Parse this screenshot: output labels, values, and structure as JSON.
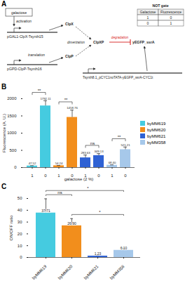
{
  "diagram": {
    "panel_label": "A",
    "labels": {
      "inducer": "galactose",
      "activation": "activation",
      "gene_clpx": "pGAL1-ClpX-Tsynth15",
      "clpx": "ClpX",
      "dimerization": "dimerization",
      "gene_clpp": "pGPD-ClpP-Tsynth16",
      "translation": "translation",
      "clpp": "ClpP",
      "clpxp": "ClpXP",
      "degradation": "degradation",
      "reporter": "yEGFP_ssrA",
      "gene_reporter": "Tsynth8.1_pCYC1noTATA-yEGFP_ssrA-CYC1t"
    },
    "truth_table": {
      "title": "NOT gate",
      "header": [
        "Galactose",
        "Fluorescence"
      ],
      "rows": [
        [
          1,
          0
        ],
        [
          0,
          1
        ]
      ]
    }
  },
  "chart_data": [
    {
      "panel_label": "B",
      "type": "bar",
      "categories": [
        "1",
        "0",
        "1",
        "0",
        "1",
        "0",
        "1",
        "0"
      ],
      "x_label": "galactose (2 %)",
      "y_label": "Fluorescence (A. U.)",
      "ylim": [
        0,
        2000
      ],
      "yticks": [
        0,
        500,
        1000,
        1500,
        2000
      ],
      "data_labels": true,
      "legend": "right",
      "series": [
        {
          "name": "byMM619",
          "color": "#45cbe0",
          "values": [
            47.52,
            1792.11,
            null,
            null,
            null,
            null,
            null,
            null
          ],
          "errors": [
            6,
            150,
            null,
            null,
            null,
            null,
            null,
            null
          ]
        },
        {
          "name": "byMM620",
          "color": "#f28e1c",
          "values": [
            null,
            null,
            54.24,
            1458.76,
            null,
            null,
            null,
            null
          ],
          "errors": [
            null,
            null,
            6,
            210,
            null,
            null,
            null,
            null
          ]
        },
        {
          "name": "byMM621",
          "color": "#2f62d4",
          "values": [
            null,
            null,
            null,
            null,
            283.63,
            349.13,
            null,
            null
          ],
          "errors": [
            null,
            null,
            null,
            null,
            80,
            55,
            null,
            null
          ]
        },
        {
          "name": "byMM358",
          "color": "#a6c8ea",
          "values": [
            null,
            null,
            null,
            null,
            null,
            null,
            68.4,
            521.21
          ],
          "errors": [
            null,
            null,
            null,
            null,
            null,
            null,
            10,
            75
          ]
        }
      ],
      "value_labels": [
        "47.52",
        "1792.11",
        "54.24",
        "1458.76",
        "283.63",
        "349.13",
        "68.40",
        "521.21"
      ],
      "significance": [
        {
          "from": 0,
          "to": 1,
          "label": "**"
        },
        {
          "from": 2,
          "to": 3,
          "label": "**"
        },
        {
          "from": 4,
          "to": 5,
          "label": "ns"
        },
        {
          "from": 6,
          "to": 7,
          "label": "**"
        }
      ]
    },
    {
      "panel_label": "C",
      "type": "bar",
      "categories": [
        "byMM619",
        "byMM620",
        "byMM621",
        "byMM358"
      ],
      "y_label": "ON/OFF ratio",
      "ylim": [
        0,
        50
      ],
      "yticks": [
        0,
        10,
        20,
        30,
        40,
        50
      ],
      "values": [
        37.71,
        26.9,
        1.23,
        6.1
      ],
      "value_labels": [
        "37.71",
        "26.90",
        "1.23",
        "6.10"
      ],
      "errors": [
        12,
        6,
        0.5,
        1.9
      ],
      "colors": [
        "#45cbe0",
        "#f28e1c",
        "#2f62d4",
        "#a6c8ea"
      ],
      "data_labels": true,
      "significance": [
        {
          "from": 1,
          "to": 3,
          "label": "*"
        },
        {
          "from": 0,
          "to": 1,
          "label": "ns"
        },
        {
          "from": 0,
          "to": 3,
          "label": "*"
        }
      ]
    }
  ]
}
